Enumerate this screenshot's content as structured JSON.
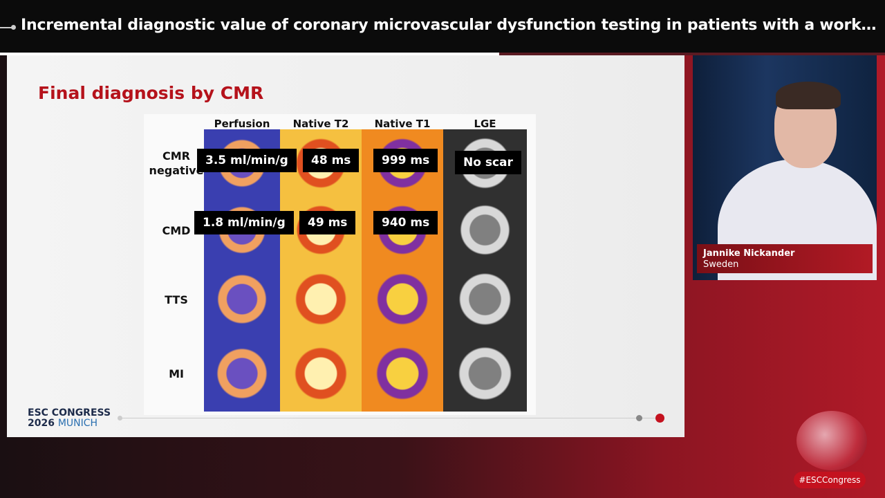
{
  "header": {
    "title": "Incremental diagnostic value of coronary microvascular dysfunction testing in patients with a work…"
  },
  "slide": {
    "title": "Final diagnosis by CMR",
    "columns": [
      "Perfusion",
      "Native T2",
      "Native T1",
      "LGE"
    ],
    "rows": [
      "CMR negative",
      "CMD",
      "TTS",
      "MI"
    ],
    "overlays": [
      [
        "3.5 ml/min/g",
        "48 ms",
        "999 ms",
        "No scar"
      ],
      [
        "1.8 ml/min/g",
        "49 ms",
        "940 ms"
      ]
    ]
  },
  "brand": {
    "name": "ESC CONGRESS",
    "year": "2026",
    "city": "MUNICH"
  },
  "speaker": {
    "name": "Jannike Nickander",
    "country": "Sweden"
  },
  "hashtag": "#ESCCongress"
}
